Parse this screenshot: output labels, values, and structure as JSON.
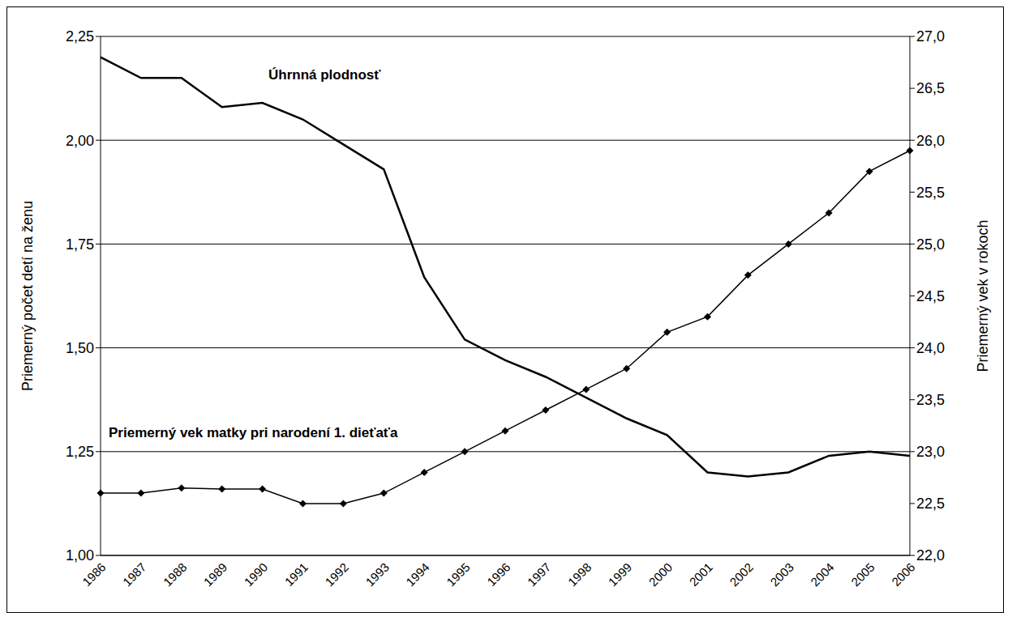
{
  "chart_data": {
    "type": "line",
    "categories": [
      "1986",
      "1987",
      "1988",
      "1989",
      "1990",
      "1991",
      "1992",
      "1993",
      "1994",
      "1995",
      "1996",
      "1997",
      "1998",
      "1999",
      "2000",
      "2001",
      "2002",
      "2003",
      "2004",
      "2005",
      "2006"
    ],
    "y_label": "Priemerný počet detí na ženu",
    "y2_label": "Priemerný vek v rokoch",
    "ylim": [
      1,
      2.25
    ],
    "yticks": [
      {
        "value": 1,
        "label": "1,00"
      },
      {
        "value": 1.25,
        "label": "1,25"
      },
      {
        "value": 1.5,
        "label": "1,50"
      },
      {
        "value": 1.75,
        "label": "1,75"
      },
      {
        "value": 2,
        "label": "2,00"
      },
      {
        "value": 2.25,
        "label": "2,25"
      }
    ],
    "y2lim": [
      22,
      27
    ],
    "y2ticks": [
      {
        "value": 22,
        "label": "22,0"
      },
      {
        "value": 22.5,
        "label": "22,5"
      },
      {
        "value": 23,
        "label": "23,0"
      },
      {
        "value": 23.5,
        "label": "23,5"
      },
      {
        "value": 24,
        "label": "24,0"
      },
      {
        "value": 24.5,
        "label": "24,5"
      },
      {
        "value": 25,
        "label": "25,0"
      },
      {
        "value": 25.5,
        "label": "25,5"
      },
      {
        "value": 26,
        "label": "26,0"
      },
      {
        "value": 26.5,
        "label": "26,5"
      },
      {
        "value": 27,
        "label": "27,0"
      }
    ],
    "grid": true,
    "series": [
      {
        "name": "Úhrnná plodnosť",
        "color": "#000000",
        "marker": "none",
        "line_style": "solid",
        "values": [
          2.2,
          2.15,
          2.15,
          2.08,
          2.09,
          2.05,
          1.99,
          1.93,
          1.67,
          1.52,
          1.47,
          1.43,
          1.38,
          1.33,
          1.29,
          1.2,
          1.19,
          1.2,
          1.24,
          1.25,
          1.24
        ]
      },
      {
        "name": "Priemerný vek matky pri narodení 1. dieťaťa",
        "color": "#000000",
        "marker": "diamond",
        "line_style": "solid",
        "axis": "y2",
        "values": [
          22.6,
          22.6,
          22.65,
          22.64,
          22.64,
          22.5,
          22.5,
          22.6,
          22.8,
          23.0,
          23.2,
          23.4,
          23.6,
          23.8,
          24.15,
          24.3,
          24.7,
          25.0,
          25.3,
          25.7,
          25.9
        ]
      }
    ]
  }
}
